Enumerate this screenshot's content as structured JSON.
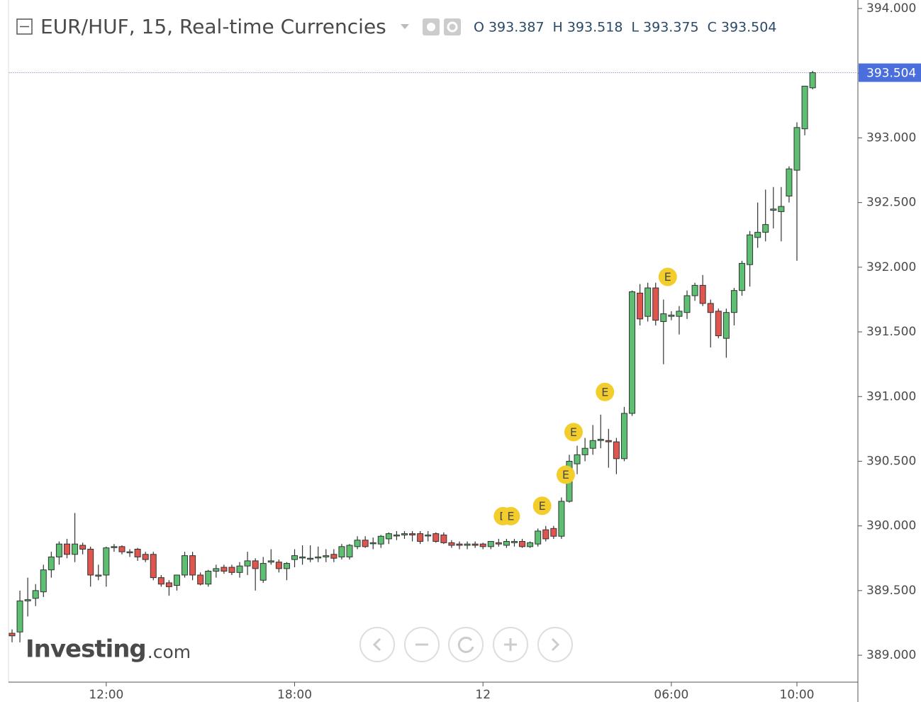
{
  "chart_data": {
    "type": "candlestick",
    "title": "EUR/HUF, 15, Real-time Currencies",
    "legend": [
      {
        "label": "O",
        "value": 393.387
      },
      {
        "label": "H",
        "value": 393.518
      },
      {
        "label": "L",
        "value": 393.375
      },
      {
        "label": "C",
        "value": 393.504
      }
    ],
    "watermark": {
      "main": "Investing",
      "suffix": ".com"
    },
    "up_color": "#5cbf72",
    "down_color": "#e0564f",
    "categories": [
      null,
      null,
      null,
      null,
      null,
      null,
      null,
      null,
      null,
      null,
      null,
      null,
      "12:00",
      null,
      null,
      null,
      null,
      null,
      null,
      null,
      null,
      null,
      null,
      null,
      null,
      null,
      null,
      null,
      null,
      null,
      null,
      null,
      null,
      null,
      null,
      null,
      "18:00",
      null,
      null,
      null,
      null,
      null,
      null,
      null,
      null,
      null,
      null,
      null,
      null,
      null,
      null,
      null,
      null,
      null,
      null,
      null,
      null,
      null,
      null,
      null,
      "12",
      null,
      null,
      null,
      null,
      null,
      null,
      null,
      null,
      null,
      null,
      null,
      null,
      null,
      null,
      null,
      null,
      null,
      null,
      null,
      null,
      null,
      null,
      null,
      "06:00",
      null,
      null,
      null,
      null,
      null,
      null,
      null,
      null,
      null,
      null,
      null,
      null,
      null,
      null,
      null,
      "10:00",
      null,
      null
    ],
    "open": [
      389.17,
      389.18,
      389.42,
      389.44,
      389.49,
      389.66,
      389.76,
      389.86,
      389.78,
      389.85,
      389.82,
      389.62,
      389.62,
      389.84,
      389.84,
      389.8,
      389.82,
      389.78,
      389.78,
      389.6,
      389.56,
      389.54,
      389.62,
      389.77,
      389.62,
      389.55,
      389.65,
      389.68,
      389.68,
      389.64,
      389.69,
      389.73,
      389.58,
      389.72,
      389.72,
      389.67,
      389.74,
      389.76,
      389.75,
      389.76,
      389.76,
      389.78,
      389.76,
      389.76,
      389.84,
      389.89,
      389.87,
      389.86,
      389.9,
      389.93,
      389.93,
      389.94,
      389.94,
      389.93,
      389.94,
      389.93,
      389.87,
      389.86,
      389.85,
      389.86,
      389.86,
      389.84,
      389.87,
      389.85,
      389.87,
      389.88,
      389.84,
      389.86,
      389.97,
      389.98,
      389.92,
      390.19,
      390.48,
      390.55,
      390.6,
      390.66,
      390.66,
      390.65,
      390.52,
      390.87,
      391.8,
      391.62,
      391.84,
      391.58,
      391.62,
      391.62,
      391.65,
      391.78,
      391.86,
      391.72,
      391.66,
      391.45,
      391.65,
      391.82,
      392.02,
      392.23,
      392.27,
      392.44,
      392.43,
      392.55,
      392.75,
      393.07,
      393.387
    ],
    "high": [
      389.2,
      389.5,
      389.6,
      389.55,
      389.7,
      389.8,
      389.88,
      389.9,
      390.1,
      389.87,
      389.84,
      389.7,
      389.84,
      389.86,
      389.85,
      389.82,
      389.83,
      389.8,
      389.8,
      389.62,
      389.58,
      389.62,
      389.8,
      389.8,
      389.64,
      389.66,
      389.7,
      389.7,
      389.7,
      389.72,
      389.8,
      389.75,
      389.76,
      389.82,
      389.74,
      389.72,
      389.82,
      389.85,
      389.85,
      389.84,
      389.82,
      389.82,
      389.86,
      389.86,
      389.92,
      389.92,
      389.91,
      389.93,
      389.95,
      389.96,
      389.96,
      389.96,
      389.96,
      389.96,
      389.95,
      389.95,
      389.89,
      389.88,
      389.88,
      389.88,
      389.87,
      389.88,
      389.9,
      389.9,
      389.9,
      389.9,
      389.88,
      389.98,
      390.0,
      390.0,
      390.22,
      390.55,
      390.62,
      390.68,
      390.78,
      390.86,
      390.75,
      390.68,
      390.92,
      391.82,
      391.87,
      391.88,
      391.88,
      391.75,
      391.66,
      391.7,
      391.82,
      391.88,
      391.94,
      391.75,
      391.68,
      391.68,
      391.84,
      392.05,
      392.28,
      392.5,
      392.6,
      392.62,
      392.62,
      392.78,
      393.12,
      393.4,
      393.518
    ],
    "low": [
      389.1,
      389.1,
      389.3,
      389.38,
      389.45,
      389.6,
      389.7,
      389.75,
      389.72,
      389.78,
      389.53,
      389.58,
      389.53,
      389.8,
      389.78,
      389.76,
      389.73,
      389.72,
      389.58,
      389.53,
      389.46,
      389.5,
      389.6,
      389.58,
      389.54,
      389.53,
      389.6,
      389.63,
      389.62,
      389.6,
      389.62,
      389.5,
      389.56,
      389.7,
      389.64,
      389.58,
      389.68,
      389.7,
      389.72,
      389.72,
      389.72,
      389.72,
      389.74,
      389.74,
      389.82,
      389.83,
      389.82,
      389.83,
      389.86,
      389.89,
      389.9,
      389.88,
      389.86,
      389.88,
      389.87,
      389.86,
      389.83,
      389.82,
      389.82,
      389.83,
      389.82,
      389.82,
      389.84,
      389.83,
      389.84,
      389.83,
      389.83,
      389.84,
      389.88,
      389.9,
      389.9,
      390.18,
      390.4,
      390.5,
      390.55,
      390.6,
      390.45,
      390.4,
      390.5,
      390.85,
      391.55,
      391.58,
      391.55,
      391.25,
      391.59,
      391.48,
      391.6,
      391.74,
      391.7,
      391.38,
      391.45,
      391.3,
      391.55,
      391.78,
      391.85,
      392.15,
      392.2,
      392.3,
      392.2,
      392.5,
      392.05,
      393.02,
      393.375
    ],
    "close": [
      389.15,
      389.42,
      389.43,
      389.5,
      389.66,
      389.76,
      389.86,
      389.78,
      389.86,
      389.82,
      389.62,
      389.62,
      389.83,
      389.84,
      389.8,
      389.8,
      389.76,
      389.74,
      389.6,
      389.55,
      389.53,
      389.62,
      389.77,
      389.62,
      389.55,
      389.65,
      389.67,
      389.65,
      389.64,
      389.69,
      389.73,
      389.67,
      389.71,
      389.73,
      389.67,
      389.71,
      389.77,
      389.76,
      389.75,
      389.76,
      389.77,
      389.75,
      389.84,
      389.85,
      389.89,
      389.84,
      389.87,
      389.92,
      389.94,
      389.93,
      389.94,
      389.93,
      389.88,
      389.93,
      389.88,
      389.87,
      389.85,
      389.85,
      389.86,
      389.85,
      389.84,
      389.88,
      389.86,
      389.88,
      389.88,
      389.84,
      389.87,
      389.96,
      389.9,
      389.92,
      390.19,
      390.5,
      390.55,
      390.6,
      390.66,
      390.67,
      390.65,
      390.52,
      390.87,
      391.81,
      391.6,
      391.84,
      391.59,
      391.64,
      391.63,
      391.66,
      391.78,
      391.86,
      391.72,
      391.65,
      391.47,
      391.65,
      391.82,
      392.03,
      392.25,
      392.27,
      392.33,
      392.45,
      392.47,
      392.76,
      393.08,
      393.4,
      393.504
    ],
    "events": [
      {
        "x": 62,
        "label": "E"
      },
      {
        "x": 63,
        "label": "E"
      },
      {
        "x": 67,
        "label": "E"
      },
      {
        "x": 70,
        "label": "E"
      },
      {
        "x": 71,
        "label": "E"
      },
      {
        "x": 75,
        "label": "E"
      },
      {
        "x": 83,
        "label": "E"
      }
    ],
    "ylim": [
      388.792,
      394.066
    ],
    "yticks": [
      {
        "value": 389,
        "label": "389.000"
      },
      {
        "value": 389.5,
        "label": "389.500"
      },
      {
        "value": 390,
        "label": "390.000"
      },
      {
        "value": 390.5,
        "label": "390.500"
      },
      {
        "value": 391,
        "label": "391.000"
      },
      {
        "value": 391.5,
        "label": "391.500"
      },
      {
        "value": 392,
        "label": "392.000"
      },
      {
        "value": 392.5,
        "label": "392.500"
      },
      {
        "value": 393,
        "label": "393.000"
      },
      {
        "value": 393.5,
        "label": "393.500"
      },
      {
        "value": 394,
        "label": "394.000"
      }
    ]
  }
}
